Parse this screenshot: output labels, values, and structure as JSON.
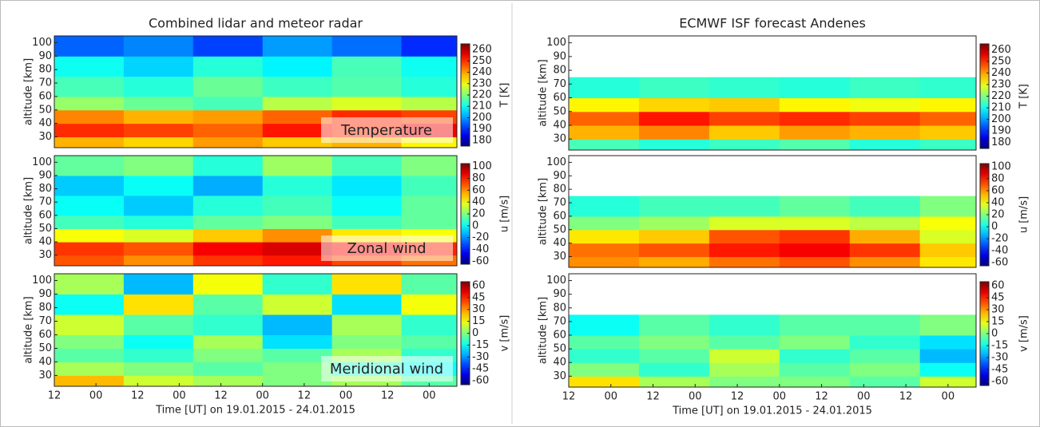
{
  "chart_data": [
    {
      "type": "heatmap",
      "title": "Combined lidar and meteor radar",
      "ylabel": "altitude [km]",
      "colorbar_label": "T [K]",
      "annotation": "Temperature",
      "colormap": "jet",
      "xlim": [
        0,
        116
      ],
      "ylim": [
        22,
        105
      ],
      "yticks": [
        30,
        40,
        50,
        60,
        70,
        80,
        90,
        100
      ],
      "x_bins": [
        0,
        20,
        40,
        60,
        80,
        100,
        116
      ],
      "y_bins": [
        22,
        30,
        40,
        50,
        60,
        75,
        90,
        105
      ],
      "z": [
        [
          238,
          235,
          240,
          236,
          238,
          232
        ],
        [
          250,
          248,
          245,
          252,
          250,
          255
        ],
        [
          242,
          238,
          240,
          245,
          250,
          248
        ],
        [
          222,
          218,
          215,
          225,
          228,
          225
        ],
        [
          215,
          212,
          218,
          214,
          216,
          212
        ],
        [
          210,
          205,
          212,
          208,
          215,
          210
        ],
        [
          195,
          198,
          192,
          200,
          196,
          190
        ]
      ],
      "clim": [
        175,
        265
      ],
      "cticks": [
        180,
        190,
        200,
        210,
        220,
        230,
        240,
        250,
        260
      ]
    },
    {
      "type": "heatmap",
      "ylabel": "altitude [km]",
      "colorbar_label": "u [m/s]",
      "annotation": "Zonal wind",
      "colormap": "jet",
      "xlim": [
        0,
        116
      ],
      "ylim": [
        22,
        105
      ],
      "yticks": [
        30,
        40,
        50,
        60,
        70,
        80,
        90,
        100
      ],
      "x_bins": [
        0,
        20,
        40,
        60,
        80,
        100,
        116
      ],
      "y_bins": [
        22,
        30,
        40,
        50,
        60,
        75,
        90,
        105
      ],
      "z": [
        [
          70,
          60,
          75,
          80,
          72,
          65
        ],
        [
          75,
          70,
          85,
          90,
          82,
          78
        ],
        [
          40,
          35,
          50,
          60,
          45,
          40
        ],
        [
          10,
          5,
          15,
          20,
          10,
          15
        ],
        [
          0,
          -10,
          5,
          10,
          0,
          15
        ],
        [
          -10,
          0,
          -15,
          5,
          -5,
          10
        ],
        [
          15,
          20,
          5,
          25,
          10,
          20
        ]
      ],
      "clim": [
        -65,
        105
      ],
      "cticks": [
        -60,
        -40,
        -20,
        0,
        20,
        40,
        60,
        80,
        100
      ]
    },
    {
      "type": "heatmap",
      "ylabel": "altitude [km]",
      "colorbar_label": "v [m/s]",
      "annotation": "Meridional wind",
      "colormap": "jet",
      "xlabel": "Time [UT] on 19.01.2015 - 24.01.2015",
      "xlim": [
        0,
        116
      ],
      "ylim": [
        22,
        105
      ],
      "yticks": [
        30,
        40,
        50,
        60,
        70,
        80,
        90,
        100
      ],
      "xticks": [
        {
          "value": 0,
          "label": "12"
        },
        {
          "value": 12,
          "label": "00"
        },
        {
          "value": 24,
          "label": "12"
        },
        {
          "value": 36,
          "label": "00"
        },
        {
          "value": 48,
          "label": "12"
        },
        {
          "value": 60,
          "label": "00"
        },
        {
          "value": 72,
          "label": "12"
        },
        {
          "value": 84,
          "label": "00"
        },
        {
          "value": 96,
          "label": "12"
        },
        {
          "value": 108,
          "label": "00"
        }
      ],
      "x_bins": [
        0,
        20,
        40,
        60,
        80,
        100,
        116
      ],
      "y_bins": [
        22,
        30,
        40,
        50,
        60,
        75,
        90,
        105
      ],
      "z": [
        [
          25,
          10,
          5,
          0,
          5,
          -5
        ],
        [
          5,
          0,
          -5,
          0,
          -10,
          -15
        ],
        [
          -5,
          -10,
          0,
          -5,
          5,
          -10
        ],
        [
          0,
          -15,
          5,
          -20,
          0,
          -5
        ],
        [
          10,
          -5,
          -10,
          -25,
          5,
          -10
        ],
        [
          -15,
          20,
          -5,
          10,
          -20,
          15
        ],
        [
          5,
          -25,
          15,
          -10,
          20,
          -5
        ]
      ],
      "clim": [
        -65,
        65
      ],
      "cticks": [
        -60,
        -45,
        -30,
        -15,
        0,
        15,
        30,
        45,
        60
      ]
    },
    {
      "type": "heatmap",
      "title": "ECMWF ISF forecast Andenes",
      "ylabel": "altitude [km]",
      "colorbar_label": "T [K]",
      "colormap": "jet",
      "xlim": [
        0,
        116
      ],
      "ylim": [
        22,
        105
      ],
      "yticks": [
        30,
        40,
        50,
        60,
        70,
        80,
        90,
        100
      ],
      "x_bins": [
        0,
        20,
        40,
        60,
        80,
        100,
        116
      ],
      "y_bins": [
        22,
        30,
        40,
        50,
        60,
        75,
        90,
        105
      ],
      "z": [
        [
          215,
          212,
          214,
          216,
          212,
          214
        ],
        [
          238,
          242,
          236,
          240,
          238,
          236
        ],
        [
          245,
          252,
          248,
          250,
          248,
          245
        ],
        [
          232,
          235,
          236,
          232,
          230,
          232
        ],
        [
          212,
          214,
          213,
          212,
          214,
          213
        ],
        [
          null,
          null,
          null,
          null,
          null,
          null
        ],
        [
          null,
          null,
          null,
          null,
          null,
          null
        ]
      ],
      "clim": [
        175,
        265
      ],
      "cticks": [
        180,
        190,
        200,
        210,
        220,
        230,
        240,
        250,
        260
      ]
    },
    {
      "type": "heatmap",
      "ylabel": "altitude [km]",
      "colorbar_label": "u [m/s]",
      "colormap": "jet",
      "xlim": [
        0,
        116
      ],
      "ylim": [
        22,
        105
      ],
      "yticks": [
        30,
        40,
        50,
        60,
        70,
        80,
        90,
        100
      ],
      "x_bins": [
        0,
        20,
        40,
        60,
        80,
        100,
        116
      ],
      "y_bins": [
        22,
        30,
        40,
        50,
        60,
        75,
        90,
        105
      ],
      "z": [
        [
          60,
          55,
          65,
          70,
          60,
          45
        ],
        [
          65,
          70,
          80,
          85,
          75,
          50
        ],
        [
          45,
          50,
          70,
          75,
          55,
          35
        ],
        [
          20,
          25,
          35,
          35,
          30,
          40
        ],
        [
          5,
          10,
          10,
          15,
          10,
          20
        ],
        [
          null,
          null,
          null,
          null,
          null,
          null
        ],
        [
          null,
          null,
          null,
          null,
          null,
          null
        ]
      ],
      "clim": [
        -65,
        105
      ],
      "cticks": [
        -60,
        -40,
        -20,
        0,
        20,
        40,
        60,
        80,
        100
      ]
    },
    {
      "type": "heatmap",
      "ylabel": "altitude [km]",
      "colorbar_label": "v [m/s]",
      "colormap": "jet",
      "xlabel": "Time [UT] on 19.01.2015 - 24.01.2015",
      "xlim": [
        0,
        116
      ],
      "ylim": [
        22,
        105
      ],
      "yticks": [
        30,
        40,
        50,
        60,
        70,
        80,
        90,
        100
      ],
      "xticks": [
        {
          "value": 0,
          "label": "12"
        },
        {
          "value": 12,
          "label": "00"
        },
        {
          "value": 24,
          "label": "12"
        },
        {
          "value": 36,
          "label": "00"
        },
        {
          "value": 48,
          "label": "12"
        },
        {
          "value": 60,
          "label": "00"
        },
        {
          "value": 72,
          "label": "12"
        },
        {
          "value": 84,
          "label": "00"
        },
        {
          "value": 96,
          "label": "12"
        },
        {
          "value": 108,
          "label": "00"
        }
      ],
      "x_bins": [
        0,
        20,
        40,
        60,
        80,
        100,
        116
      ],
      "y_bins": [
        22,
        30,
        40,
        50,
        60,
        75,
        90,
        105
      ],
      "z": [
        [
          20,
          5,
          0,
          0,
          -5,
          10
        ],
        [
          0,
          -10,
          5,
          -5,
          0,
          -15
        ],
        [
          -10,
          -5,
          10,
          -10,
          -5,
          -25
        ],
        [
          -5,
          0,
          -5,
          0,
          -10,
          -20
        ],
        [
          -15,
          -5,
          -10,
          -5,
          -5,
          0
        ],
        [
          null,
          null,
          null,
          null,
          null,
          null
        ],
        [
          null,
          null,
          null,
          null,
          null,
          null
        ]
      ],
      "clim": [
        -65,
        65
      ],
      "cticks": [
        -60,
        -45,
        -30,
        -15,
        0,
        15,
        30,
        45,
        60
      ]
    }
  ]
}
